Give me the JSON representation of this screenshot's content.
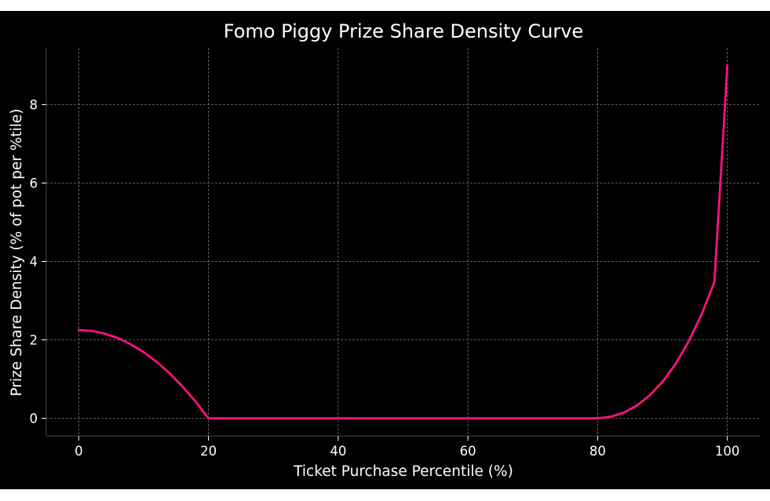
{
  "chart_data": {
    "type": "line",
    "title": "Fomo Piggy Prize Share Density Curve",
    "xlabel": "Ticket Purchase Percentile (%)",
    "ylabel": "Prize Share Density (% of pot per %tile)",
    "xlim": [
      -5,
      105
    ],
    "ylim": [
      -0.45,
      9.45
    ],
    "x_ticks": [
      0,
      20,
      40,
      60,
      80,
      100
    ],
    "y_ticks": [
      0,
      2,
      4,
      6,
      8
    ],
    "grid": true,
    "legend": "none",
    "series": [
      {
        "color": "#ff1080",
        "points": [
          [
            0,
            2.25
          ],
          [
            2,
            2.23
          ],
          [
            4,
            2.16
          ],
          [
            6,
            2.05
          ],
          [
            8,
            1.89
          ],
          [
            10,
            1.69
          ],
          [
            12,
            1.44
          ],
          [
            14,
            1.15
          ],
          [
            16,
            0.81
          ],
          [
            18,
            0.43
          ],
          [
            20,
            0.0
          ],
          [
            40,
            0.0
          ],
          [
            60,
            0.0
          ],
          [
            80,
            0.0
          ],
          [
            82,
            0.04
          ],
          [
            84,
            0.14
          ],
          [
            86,
            0.32
          ],
          [
            88,
            0.58
          ],
          [
            90,
            0.93
          ],
          [
            92,
            1.38
          ],
          [
            94,
            1.95
          ],
          [
            96,
            2.64
          ],
          [
            98,
            3.48
          ],
          [
            100,
            9.0
          ]
        ]
      }
    ]
  }
}
